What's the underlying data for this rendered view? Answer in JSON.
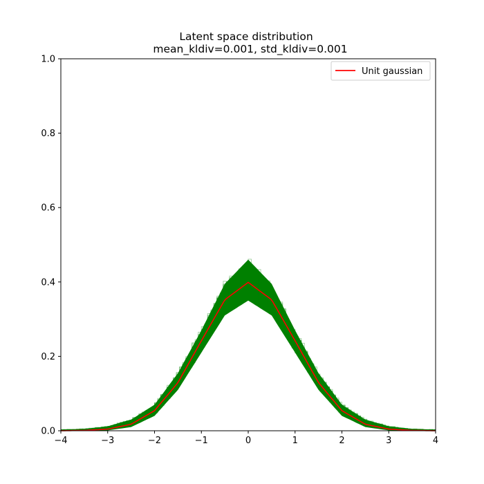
{
  "chart_data": {
    "type": "line",
    "title": "Latent space distribution",
    "subtitle": "mean_kldiv=0.001, std_kldiv=0.001",
    "xlabel": "",
    "ylabel": "",
    "xlim": [
      -4,
      4
    ],
    "ylim": [
      0,
      1.0
    ],
    "x_ticks": [
      -4,
      -3,
      -2,
      -1,
      0,
      1,
      2,
      3,
      4
    ],
    "x_tick_labels": [
      "−4",
      "−3",
      "−2",
      "−1",
      "0",
      "1",
      "2",
      "3",
      "4"
    ],
    "y_ticks": [
      0.0,
      0.2,
      0.4,
      0.6,
      0.8,
      1.0
    ],
    "y_tick_labels": [
      "0.0",
      "0.2",
      "0.4",
      "0.6",
      "0.8",
      "1.0"
    ],
    "grid": false,
    "legend_position": "top-right",
    "series": [
      {
        "name": "Unit gaussian",
        "color": "#ff0000",
        "x": [
          -4.0,
          -3.5,
          -3.0,
          -2.5,
          -2.0,
          -1.5,
          -1.0,
          -0.5,
          0.0,
          0.5,
          1.0,
          1.5,
          2.0,
          2.5,
          3.0,
          3.5,
          4.0
        ],
        "y": [
          0.0001,
          0.0009,
          0.0044,
          0.0175,
          0.054,
          0.1295,
          0.242,
          0.3521,
          0.3989,
          0.3521,
          0.242,
          0.1295,
          0.054,
          0.0175,
          0.0044,
          0.0009,
          0.0001
        ]
      },
      {
        "type": "histogram-band",
        "color": "#008000",
        "x": [
          -4.0,
          -3.5,
          -3.0,
          -2.5,
          -2.0,
          -1.5,
          -1.0,
          -0.5,
          0.0,
          0.5,
          1.0,
          1.5,
          2.0,
          2.5,
          3.0,
          3.5,
          4.0
        ],
        "y_low": [
          0.0,
          0.0,
          0.001,
          0.01,
          0.04,
          0.11,
          0.21,
          0.31,
          0.35,
          0.31,
          0.21,
          0.11,
          0.04,
          0.01,
          0.001,
          0.0,
          0.0
        ],
        "y_high": [
          0.003,
          0.005,
          0.012,
          0.03,
          0.07,
          0.155,
          0.27,
          0.395,
          0.46,
          0.395,
          0.27,
          0.155,
          0.07,
          0.03,
          0.012,
          0.005,
          0.003
        ]
      }
    ]
  }
}
